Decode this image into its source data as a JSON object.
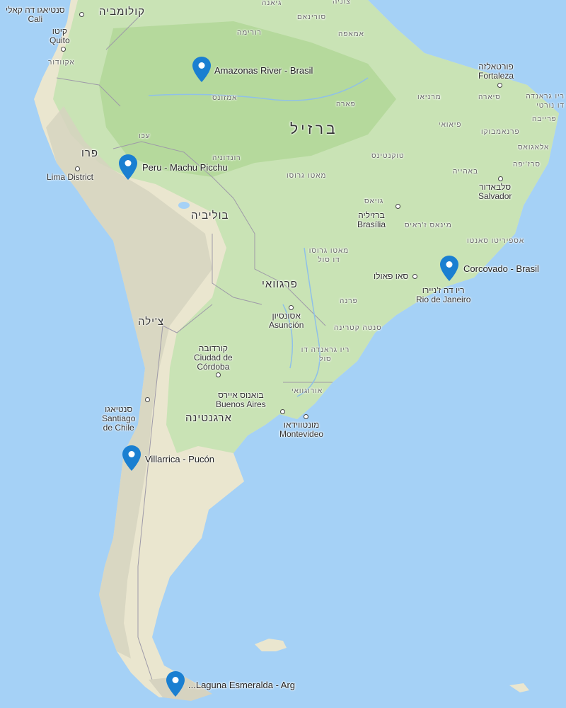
{
  "markers": [
    {
      "id": "amazonas",
      "label": "Amazonas River - Brasil",
      "color": "#1a7fd1"
    },
    {
      "id": "peru",
      "label": "Peru - Machu Picchu",
      "color": "#1a7fd1"
    },
    {
      "id": "corcovado",
      "label": "Corcovado - Brasil",
      "color": "#1a7fd1"
    },
    {
      "id": "villarrica",
      "label": "Villarrica - Pucón",
      "color": "#1a7fd1"
    },
    {
      "id": "laguna",
      "label": "...Laguna Esmeralda - Arg",
      "color": "#1a7fd1"
    }
  ],
  "countries": {
    "colombia": "קולומביה",
    "guyana": "גיאנה",
    "suriname": "סורינאם",
    "venezuela_partial": "צוניה",
    "peru": "פרו",
    "brazil": "ברזיל",
    "bolivia": "בוליביה",
    "paraguay": "פרגוואי",
    "chile": "צ'ילה",
    "argentina": "ארגנטינה",
    "uruguay": "אורוגוואי",
    "ecuador": "אקוודור"
  },
  "cities": {
    "cali_he": "סנטיאגו דה קאלי",
    "cali_en": "Cali",
    "quito_he": "קיטו",
    "quito_en": "Quito",
    "lima_en": "Lima District",
    "fortaleza_he": "פורטאלזה",
    "fortaleza_en": "Fortaleza",
    "salvador_he": "סלבאדור",
    "salvador_en": "Salvador",
    "brasilia_he": "ברזיליה",
    "brasilia_en": "Brasília",
    "rio_he": "ריו דה ז'ניירו",
    "rio_en": "Rio de Janeiro",
    "saopaulo_he": "סאו פאולו",
    "asuncion_he": "אסונסיון",
    "asuncion_en": "Asunción",
    "cordoba_he": "קורדובה",
    "cordoba_en1": "Ciudad de",
    "cordoba_en2": "Córdoba",
    "buenos_he": "בואנוס איירס",
    "buenos_en": "Buenos Aires",
    "montevideo_he": "מונטווידאו",
    "montevideo_en": "Montevideo",
    "santiago_he": "סנטיאגו",
    "santiago_en1": "Santiago",
    "santiago_en2": "de Chile"
  },
  "states": {
    "amazonas": "אמזונס",
    "roraima": "רורימה",
    "amapa": "אמאפה",
    "para": "פארה",
    "acre": "עכו",
    "rondonia": "רונדוניה",
    "mato_grosso": "מאטו גרוסו",
    "tocantins": "טוקנטינס",
    "goias": "גויאס",
    "minas": "מינאס ז'ראיס",
    "espirito": "אספיריטו סאנטו",
    "bahia": "באהייה",
    "sergipe": "סרז'יפה",
    "alagoas": "אלאגואס",
    "pernambuco": "פרנאמבוקו",
    "piaui": "פיאואי",
    "maranhao": "מרניאו",
    "ceara": "סיארה",
    "rn": "ריו גראנדה דו נורטי",
    "paraiba": "פרייבה",
    "ms": "מאטו גרוסו דו סול",
    "parana": "פרנה",
    "sc": "סנטה קטרינה",
    "rs": "ריו גראנדה דו סול"
  }
}
